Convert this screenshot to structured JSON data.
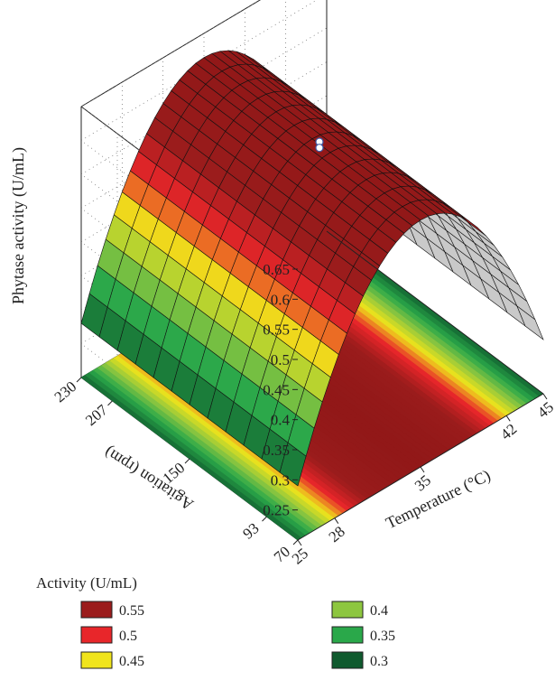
{
  "chart_data": {
    "type": "surface",
    "zlabel": "Phytase activity (U/mL)",
    "xlabel": "Temperature (°C)",
    "ylabel": "Agitation (rpm)",
    "z_ticks": [
      "0.25",
      "0.3",
      "0.35",
      "0.4",
      "0.45",
      "0.5",
      "0.55",
      "0.6",
      "0.65"
    ],
    "x_ticks": [
      "25",
      "28",
      "35",
      "42",
      "45"
    ],
    "y_ticks": [
      "70",
      "93",
      "150",
      "207",
      "230"
    ],
    "zlim": [
      0.2,
      0.65
    ],
    "xlim": [
      25,
      45
    ],
    "ylim": [
      70,
      230
    ],
    "peak": {
      "temperature": 35,
      "activity": 0.61
    },
    "edge_activity": 0.29,
    "observed_points": [
      {
        "temperature": 35,
        "agitation": 150,
        "activity": 0.605
      },
      {
        "temperature": 35,
        "agitation": 150,
        "activity": 0.595
      }
    ],
    "legend": {
      "title": "Activity (U/mL)",
      "entries": [
        {
          "label": "0.55",
          "color": "#9b1c1c"
        },
        {
          "label": "0.5",
          "color": "#e8262a"
        },
        {
          "label": "0.45",
          "color": "#f0e41b"
        },
        {
          "label": "0.4",
          "color": "#8dc63f"
        },
        {
          "label": "0.35",
          "color": "#2aa84a"
        },
        {
          "label": "0.3",
          "color": "#0f5a2e"
        }
      ]
    }
  }
}
